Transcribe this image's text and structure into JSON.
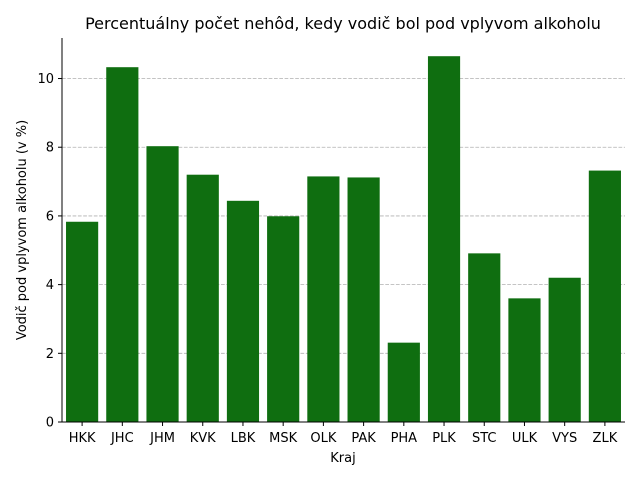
{
  "chart_data": {
    "type": "bar",
    "title": "Percentuálny počet nehôd, kedy vodič bol pod vplyvom alkoholu",
    "xlabel": "Kraj",
    "ylabel": "Vodič pod vplyvom alkoholu (v %)",
    "categories": [
      "HKK",
      "JHC",
      "JHM",
      "KVK",
      "LBK",
      "MSK",
      "OLK",
      "PAK",
      "PHA",
      "PLK",
      "STC",
      "ULK",
      "VYS",
      "ZLK"
    ],
    "values": [
      5.83,
      10.33,
      8.03,
      7.2,
      6.44,
      5.99,
      7.15,
      7.12,
      2.31,
      10.65,
      4.91,
      3.6,
      4.2,
      7.32
    ],
    "ylim": [
      0,
      11.18
    ],
    "yticks": [
      0,
      2,
      4,
      6,
      8,
      10
    ],
    "grid": "y-dashed",
    "bar_color": "#0f6e10",
    "legend": "none"
  }
}
